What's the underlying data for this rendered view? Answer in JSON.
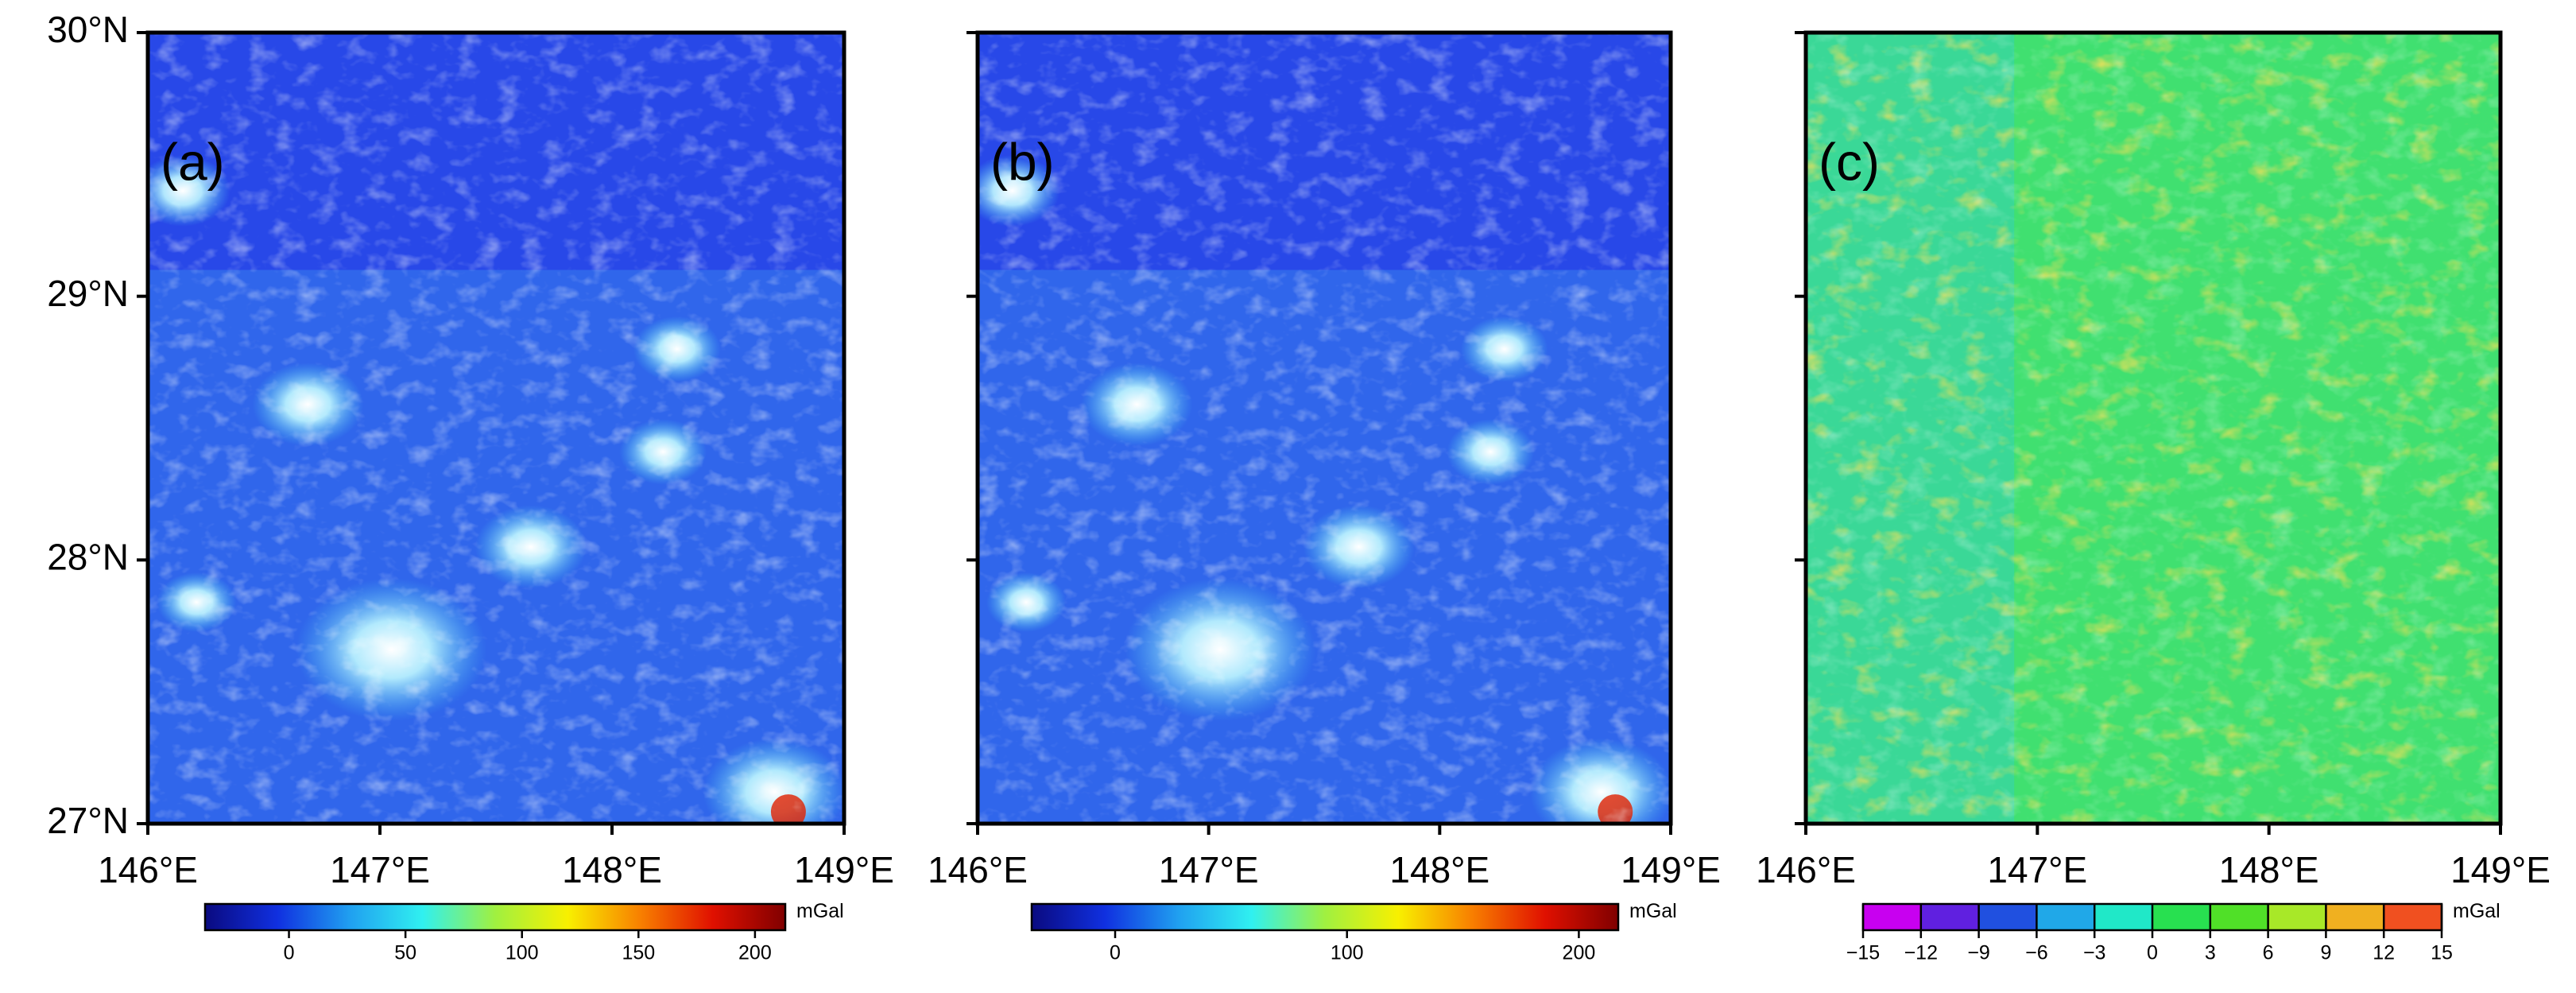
{
  "panels": [
    {
      "label": "(a)",
      "xlim": [
        146,
        149
      ],
      "ylim": [
        27,
        30
      ],
      "xticks": [
        {
          "value": 146,
          "label": "146°E"
        },
        {
          "value": 147,
          "label": "147°E"
        },
        {
          "value": 148,
          "label": "148°E"
        },
        {
          "value": 149,
          "label": "149°E"
        }
      ],
      "yticks": [
        {
          "value": 27,
          "label": "27°N"
        },
        {
          "value": 28,
          "label": "28°N"
        },
        {
          "value": 29,
          "label": "29°N"
        },
        {
          "value": 30,
          "label": "30°N"
        }
      ],
      "colorbar": {
        "lim": [
          -36,
          213
        ],
        "ticks": [
          0,
          50,
          100,
          150,
          200
        ],
        "unit": "mGal",
        "colors": [
          "#0a0a80",
          "#1030e0",
          "#20a0f0",
          "#30f0f0",
          "#a0f040",
          "#f8f000",
          "#f88000",
          "#e01000",
          "#800000"
        ]
      }
    },
    {
      "label": "(b)",
      "xlim": [
        146,
        149
      ],
      "ylim": [
        27,
        30
      ],
      "xticks": [
        {
          "value": 146,
          "label": "146°E"
        },
        {
          "value": 147,
          "label": "147°E"
        },
        {
          "value": 148,
          "label": "148°E"
        },
        {
          "value": 149,
          "label": "149°E"
        }
      ],
      "yticks": [
        27,
        28,
        29,
        30
      ],
      "colorbar": {
        "lim": [
          -36,
          217
        ],
        "ticks": [
          0,
          100,
          200
        ],
        "unit": "mGal",
        "colors": [
          "#0a0a80",
          "#1030e0",
          "#20a0f0",
          "#30f0f0",
          "#a0f040",
          "#f8f000",
          "#f88000",
          "#e01000",
          "#800000"
        ]
      }
    },
    {
      "label": "(c)",
      "xlim": [
        146,
        149
      ],
      "ylim": [
        27,
        30
      ],
      "xticks": [
        {
          "value": 146,
          "label": "146°E"
        },
        {
          "value": 147,
          "label": "147°E"
        },
        {
          "value": 148,
          "label": "148°E"
        },
        {
          "value": 149,
          "label": "149°E"
        }
      ],
      "yticks": [
        27,
        28,
        29,
        30
      ],
      "colorbar": {
        "lim": [
          -15,
          15
        ],
        "discrete": true,
        "ticks": [
          {
            "value": -15,
            "label": "−15"
          },
          {
            "value": -12,
            "label": "−12"
          },
          {
            "value": -9,
            "label": "−9"
          },
          {
            "value": -6,
            "label": "−6"
          },
          {
            "value": -3,
            "label": "−3"
          },
          0,
          3,
          6,
          9,
          12,
          15
        ],
        "unit": "mGal",
        "colors": [
          "#c800f0",
          "#6020e0",
          "#2050e0",
          "#20a8e8",
          "#20e8c8",
          "#28e050",
          "#50e028",
          "#a8e828",
          "#f0b020",
          "#f05020"
        ]
      }
    }
  ]
}
